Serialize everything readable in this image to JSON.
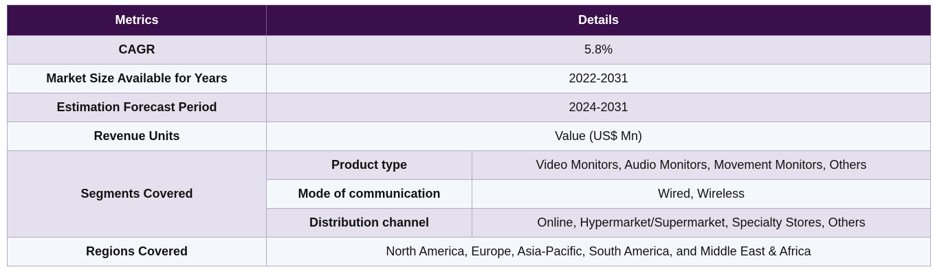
{
  "table": {
    "headers": {
      "metrics": "Metrics",
      "details": "Details"
    },
    "rows": [
      {
        "metric": "CAGR",
        "detail": "5.8%"
      },
      {
        "metric": "Market Size Available for Years",
        "detail": "2022-2031"
      },
      {
        "metric": "Estimation Forecast Period",
        "detail": "2024-2031"
      },
      {
        "metric": "Revenue Units",
        "detail": "Value (US$ Mn)"
      }
    ],
    "segments": {
      "metric": "Segments Covered",
      "items": [
        {
          "name": "Product type",
          "detail": "Video Monitors, Audio Monitors, Movement Monitors, Others"
        },
        {
          "name": "Mode of communication",
          "detail": "Wired, Wireless"
        },
        {
          "name": "Distribution channel",
          "detail": "Online, Hypermarket/Supermarket, Specialty Stores, Others"
        }
      ]
    },
    "regions": {
      "metric": "Regions Covered",
      "detail": "North America, Europe, Asia-Pacific, South America, and Middle East & Africa"
    }
  },
  "colors": {
    "header_bg": "#3a0f4b",
    "shade_row": "#e4e0ed",
    "plain_row": "#f4f8fc",
    "border": "#b3aac6"
  }
}
